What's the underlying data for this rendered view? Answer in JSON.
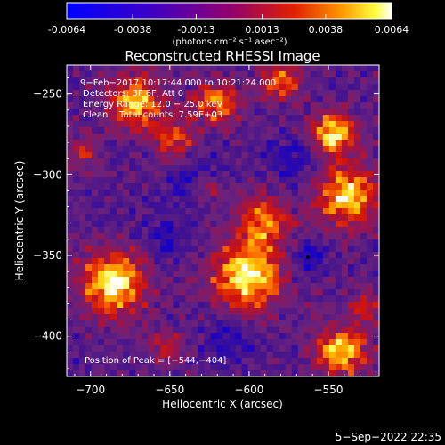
{
  "colorbar": {
    "ticks": [
      "-0.0064",
      "-0.0038",
      "-0.0013",
      "0.0013",
      "0.0038",
      "0.0064"
    ],
    "tick_values": [
      -0.0064,
      -0.0038,
      -0.0013,
      0.0013,
      0.0038,
      0.0064
    ],
    "range": [
      -0.0064,
      0.0064
    ],
    "units": "(photons cm⁻² s⁻¹ asec⁻²)"
  },
  "plot": {
    "title": "Reconstructed RHESSI Image",
    "xlabel": "Heliocentric X (arcsec)",
    "ylabel": "Heliocentric Y (arcsec)",
    "x_ticks": [
      "−700",
      "−650",
      "−600",
      "−550"
    ],
    "x_tick_values": [
      -700,
      -650,
      -600,
      -550
    ],
    "y_ticks": [
      "−250",
      "−300",
      "−350",
      "−400"
    ],
    "y_tick_values": [
      -250,
      -300,
      -350,
      -400
    ],
    "xlim": [
      -715,
      -518
    ],
    "ylim": [
      -425,
      -232
    ]
  },
  "annotations": {
    "line1": "9−Feb−2017 10:17:44.000 to 10:21:24.000",
    "line2": "Detectors: 3F 6F, Att 0",
    "line3": "Energy Range: 12.0 − 25.0 keV",
    "line4": "Clean    Total counts: 7.59E+03",
    "peak": "Position of Peak = [−544,−404]"
  },
  "footer": {
    "date": "5−Sep−2022 22:35"
  },
  "chart_data": {
    "type": "heatmap",
    "title": "Reconstructed RHESSI Image",
    "xlabel": "Heliocentric X (arcsec)",
    "ylabel": "Heliocentric Y (arcsec)",
    "xlim": [
      -715,
      -518
    ],
    "ylim": [
      -425,
      -232
    ],
    "colorbar_range": [
      -0.0064,
      0.0064
    ],
    "peak_position": [
      -544,
      -404
    ],
    "colors": {
      "low": "#0000ff",
      "mid": "#800080",
      "high": "#ffff00",
      "top": "#ffffff"
    }
  }
}
